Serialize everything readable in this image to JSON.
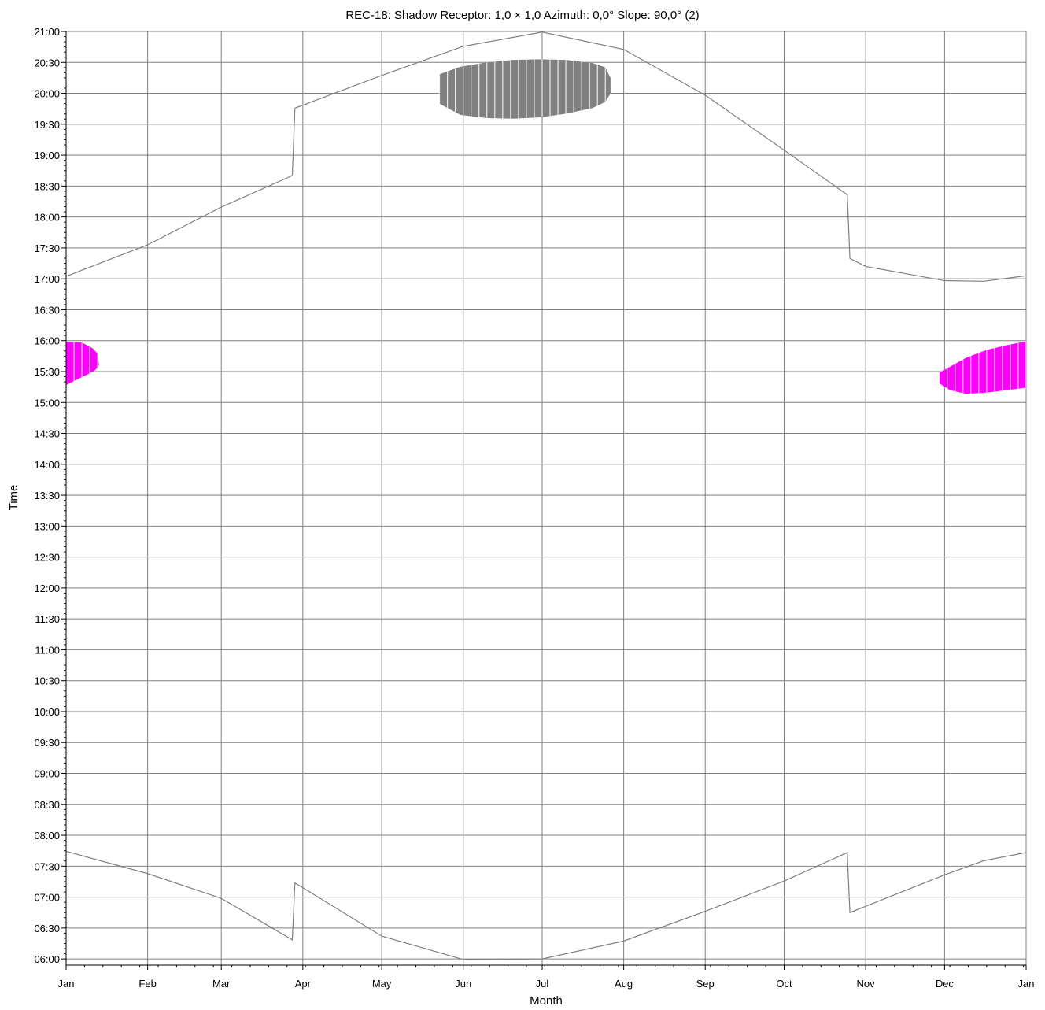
{
  "chart_data": {
    "type": "area",
    "title": "REC-18: Shadow Receptor: 1,0 × 1,0  Azimuth: 0,0°  Slope: 90,0° (2)",
    "xlabel": "Month",
    "ylabel": "Time",
    "x_tick_labels": [
      "Jan",
      "Feb",
      "Mar",
      "Apr",
      "May",
      "Jun",
      "Jul",
      "Aug",
      "Sep",
      "Oct",
      "Nov",
      "Dec",
      "Jan"
    ],
    "y_tick_labels": [
      "06:00",
      "06:30",
      "07:00",
      "07:30",
      "08:00",
      "08:30",
      "09:00",
      "09:30",
      "10:00",
      "10:30",
      "11:00",
      "11:30",
      "12:00",
      "12:30",
      "13:00",
      "13:30",
      "14:00",
      "14:30",
      "15:00",
      "15:30",
      "16:00",
      "16:30",
      "17:00",
      "17:30",
      "18:00",
      "18:30",
      "19:00",
      "19:30",
      "20:00",
      "20:30",
      "21:00"
    ],
    "x_range_days": [
      0,
      365
    ],
    "y_range_hours": [
      5.9,
      21.0
    ],
    "grid": true,
    "colors": {
      "grid": "#808080",
      "sun_curve": "#808080",
      "shadow_summer": "#808080",
      "shadow_winter": "#ff00ff"
    },
    "series": [
      {
        "kind": "line",
        "points": [
          [
            0,
            17.04
          ],
          [
            31,
            17.55
          ],
          [
            59,
            18.16
          ],
          [
            86,
            18.67
          ],
          [
            87,
            19.76
          ],
          [
            120,
            20.29
          ],
          [
            151,
            20.76
          ],
          [
            181,
            20.99
          ],
          [
            212,
            20.71
          ],
          [
            243,
            19.97
          ],
          [
            273,
            19.08
          ],
          [
            297,
            18.36
          ],
          [
            298,
            17.33
          ],
          [
            304,
            17.2
          ],
          [
            334,
            16.97
          ],
          [
            349,
            16.96
          ],
          [
            365,
            17.05
          ]
        ]
      },
      {
        "kind": "line",
        "points": [
          [
            0,
            7.74
          ],
          [
            31,
            7.38
          ],
          [
            59,
            6.98
          ],
          [
            86,
            6.31
          ],
          [
            87,
            7.23
          ],
          [
            120,
            6.37
          ],
          [
            151,
            5.99
          ],
          [
            181,
            6.0
          ],
          [
            212,
            6.29
          ],
          [
            243,
            6.77
          ],
          [
            273,
            7.26
          ],
          [
            297,
            7.72
          ],
          [
            298,
            6.75
          ],
          [
            334,
            7.36
          ],
          [
            349,
            7.59
          ],
          [
            365,
            7.72
          ]
        ]
      },
      {
        "kind": "area",
        "period": "summer",
        "upper": [
          [
            142,
            20.31
          ],
          [
            150,
            20.43
          ],
          [
            160,
            20.5
          ],
          [
            170,
            20.54
          ],
          [
            180,
            20.55
          ],
          [
            190,
            20.54
          ],
          [
            200,
            20.49
          ],
          [
            205,
            20.42
          ],
          [
            207,
            20.25
          ]
        ],
        "lower": [
          [
            142,
            19.83
          ],
          [
            150,
            19.65
          ],
          [
            160,
            19.6
          ],
          [
            170,
            19.59
          ],
          [
            180,
            19.61
          ],
          [
            190,
            19.67
          ],
          [
            200,
            19.76
          ],
          [
            205,
            19.86
          ],
          [
            207,
            20.0
          ]
        ]
      },
      {
        "kind": "area",
        "period": "winter-early",
        "upper": [
          [
            0,
            15.98
          ],
          [
            6,
            15.97
          ],
          [
            10,
            15.88
          ],
          [
            12,
            15.79
          ],
          [
            12.5,
            15.6
          ]
        ],
        "lower": [
          [
            0,
            15.28
          ],
          [
            4,
            15.37
          ],
          [
            8,
            15.45
          ],
          [
            11,
            15.52
          ],
          [
            12.5,
            15.6
          ]
        ]
      },
      {
        "kind": "area",
        "period": "winter-late",
        "upper": [
          [
            332,
            15.48
          ],
          [
            337,
            15.6
          ],
          [
            342,
            15.72
          ],
          [
            350,
            15.85
          ],
          [
            358,
            15.93
          ],
          [
            365,
            15.99
          ]
        ],
        "lower": [
          [
            332,
            15.31
          ],
          [
            336,
            15.2
          ],
          [
            342,
            15.14
          ],
          [
            350,
            15.16
          ],
          [
            358,
            15.2
          ],
          [
            365,
            15.24
          ]
        ]
      }
    ]
  }
}
